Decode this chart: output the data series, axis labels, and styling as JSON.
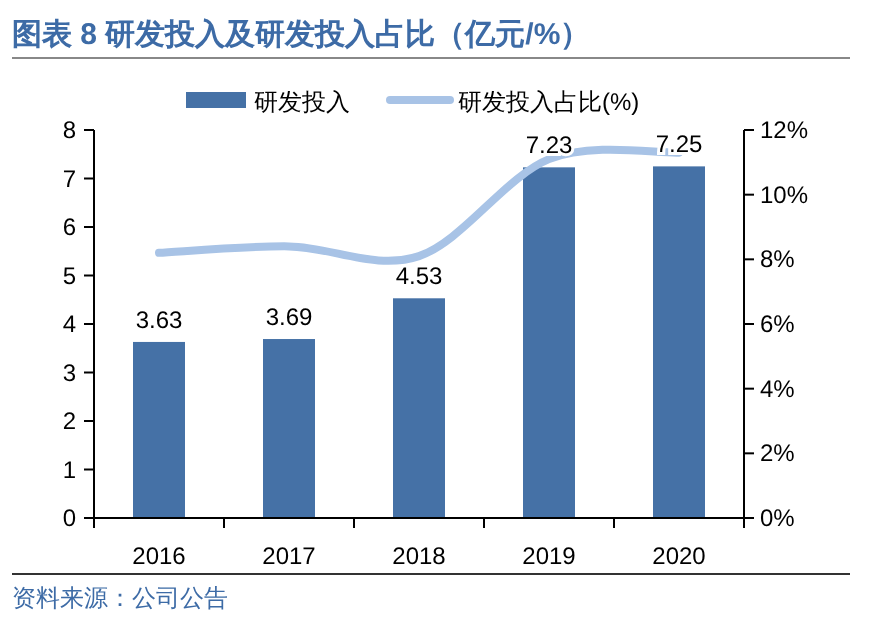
{
  "chart_data": {
    "type": "bar",
    "title": "图表 8 研发投入及研发投入占比（亿元/%）",
    "categories": [
      "2016",
      "2017",
      "2018",
      "2019",
      "2020"
    ],
    "series": [
      {
        "name": "研发投入",
        "color": "#4571a6",
        "values": [
          3.63,
          3.69,
          4.53,
          7.23,
          7.25
        ],
        "value_labels": [
          "3.63",
          "3.69",
          "4.53",
          "7.23",
          "7.25"
        ]
      },
      {
        "name": "研发投入占比(%)",
        "type": "line",
        "axis": "y2",
        "color": "#a8c3e6",
        "values": [
          8.2,
          8.4,
          8.1,
          11.1,
          11.3
        ]
      }
    ],
    "ylim": [
      0,
      8
    ],
    "yticks": [
      0,
      1,
      2,
      3,
      4,
      5,
      6,
      7,
      8
    ],
    "y2lim": [
      0,
      12
    ],
    "y2ticks": [
      {
        "value": 0,
        "label": "0%"
      },
      {
        "value": 2,
        "label": "2%"
      },
      {
        "value": 4,
        "label": "4%"
      },
      {
        "value": 6,
        "label": "6%"
      },
      {
        "value": 8,
        "label": "8%"
      },
      {
        "value": 10,
        "label": "10%"
      },
      {
        "value": 12,
        "label": "12%"
      }
    ],
    "legend": "top",
    "grid": false,
    "marker": "none",
    "line_style": "solid",
    "annotations": [
      "资料来源：公司公告"
    ]
  }
}
